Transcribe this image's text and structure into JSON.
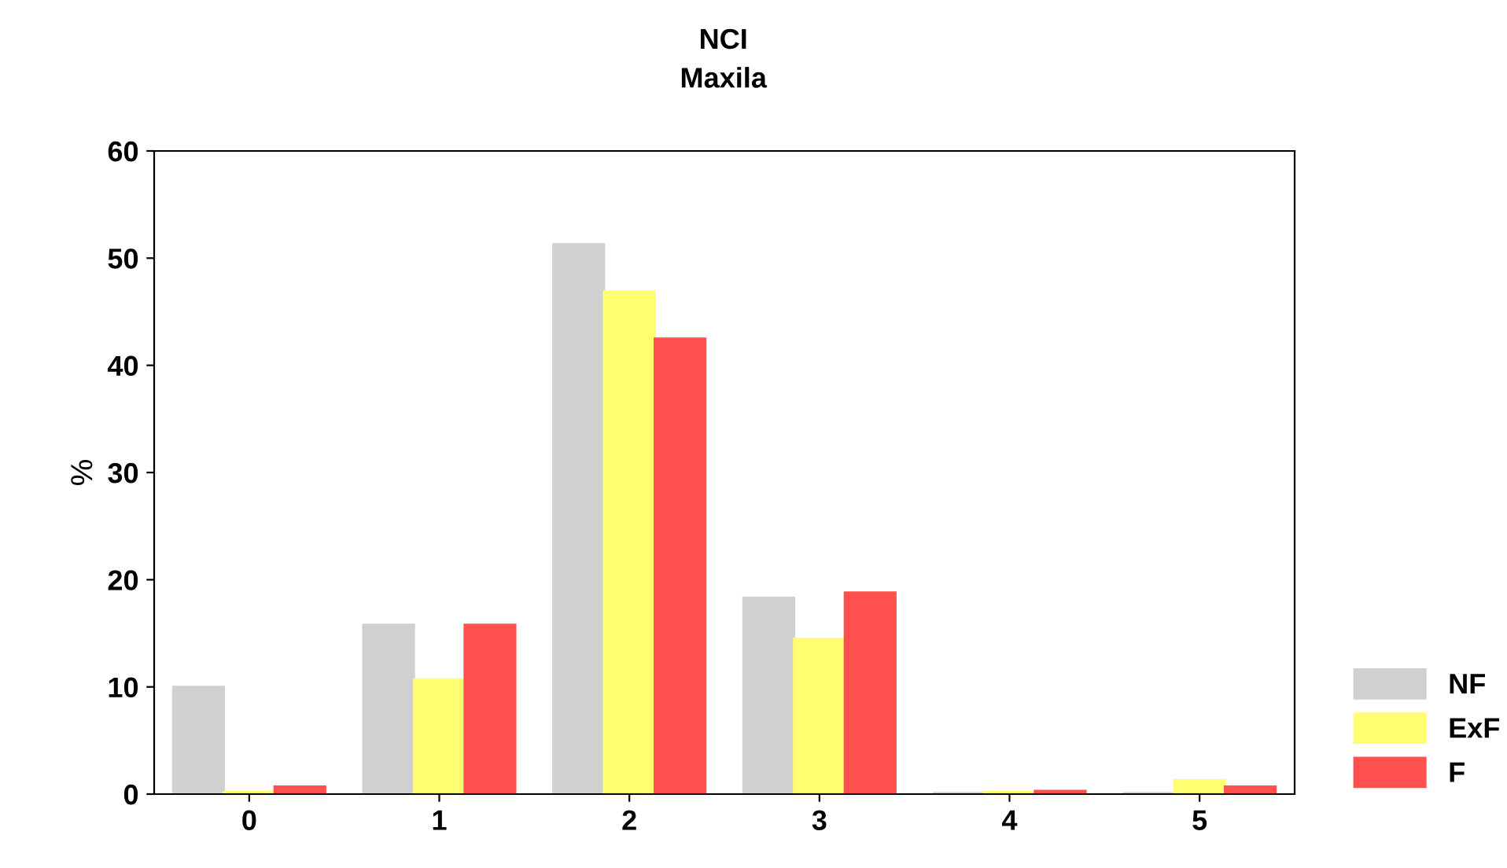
{
  "chart_data": {
    "type": "bar",
    "title": "NCI\nMaxila",
    "ylabel": "%",
    "categories": [
      "0",
      "1",
      "2",
      "3",
      "4",
      "5"
    ],
    "series": [
      {
        "name": "NF",
        "color": "#d0d0d0",
        "values": [
          10.0,
          15.8,
          51.3,
          18.3,
          0.1,
          0.1
        ]
      },
      {
        "name": "ExF",
        "color": "#ffff70",
        "values": [
          0.2,
          10.7,
          46.9,
          14.5,
          0.2,
          1.3
        ]
      },
      {
        "name": "F",
        "color": "#ff5050",
        "values": [
          0.7,
          15.8,
          42.5,
          18.8,
          0.3,
          0.7
        ]
      }
    ],
    "ylim": [
      0,
      60
    ],
    "yticks": [
      0,
      10,
      20,
      30,
      40,
      50,
      60
    ],
    "grid": false,
    "legend": "bottom right"
  }
}
